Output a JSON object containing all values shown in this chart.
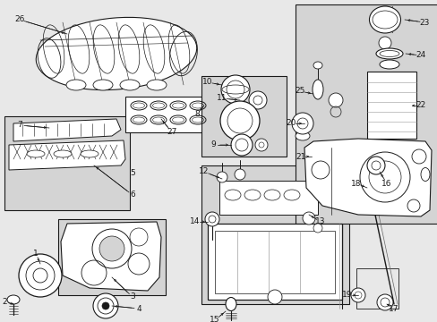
{
  "bg_color": "#e8e8e8",
  "line_color": "#1a1a1a",
  "text_color": "#111111",
  "white": "#ffffff",
  "gray_fill": "#d4d4d4",
  "fig_width": 4.89,
  "fig_height": 3.6,
  "dpi": 100
}
